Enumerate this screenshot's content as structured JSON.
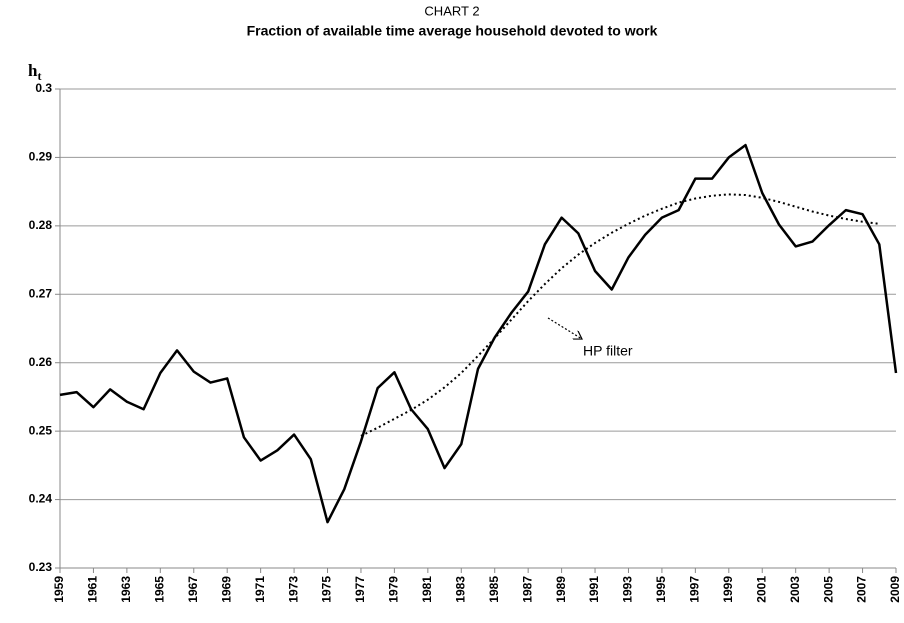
{
  "chart_data": {
    "type": "line",
    "supertitle": "CHART 2",
    "title": "Fraction of available time average household devoted to work",
    "y_label": {
      "base": "h",
      "subscript": "t"
    },
    "x": [
      1959,
      1960,
      1961,
      1962,
      1963,
      1964,
      1965,
      1966,
      1967,
      1968,
      1969,
      1970,
      1971,
      1972,
      1973,
      1974,
      1975,
      1976,
      1977,
      1978,
      1979,
      1980,
      1981,
      1982,
      1983,
      1984,
      1985,
      1986,
      1987,
      1988,
      1989,
      1990,
      1991,
      1992,
      1993,
      1994,
      1995,
      1996,
      1997,
      1998,
      1999,
      2000,
      2001,
      2002,
      2003,
      2004,
      2005,
      2006,
      2007,
      2008,
      2009
    ],
    "series": [
      {
        "color": "#000000",
        "style": "solid",
        "values": [
          0.2553,
          0.2557,
          0.2535,
          0.2561,
          0.2543,
          0.2532,
          0.2585,
          0.2618,
          0.2587,
          0.2571,
          0.2577,
          0.2491,
          0.2457,
          0.2472,
          0.2495,
          0.2459,
          0.2367,
          0.2415,
          0.2485,
          0.2563,
          0.2586,
          0.2532,
          0.2503,
          0.2446,
          0.2481,
          0.2591,
          0.2637,
          0.2673,
          0.2704,
          0.2773,
          0.2812,
          0.2789,
          0.2734,
          0.2707,
          0.2754,
          0.2787,
          0.2812,
          0.2823,
          0.2869,
          0.2869,
          0.29,
          0.2918,
          0.2848,
          0.2802,
          0.277,
          0.2777,
          0.2801,
          0.2823,
          0.2817,
          0.2773,
          0.2585
        ]
      },
      {
        "color": "#000000",
        "style": "dotted",
        "values": [
          null,
          null,
          null,
          null,
          null,
          null,
          null,
          null,
          null,
          null,
          null,
          null,
          null,
          null,
          null,
          null,
          null,
          null,
          0.2493,
          0.2505,
          0.2518,
          0.2531,
          0.2546,
          0.2564,
          0.2585,
          0.261,
          0.2636,
          0.2663,
          0.269,
          0.2715,
          0.2738,
          0.2758,
          0.2775,
          0.279,
          0.2803,
          0.2815,
          0.2825,
          0.2834,
          0.284,
          0.2844,
          0.2846,
          0.2845,
          0.2841,
          0.2835,
          0.2828,
          0.2821,
          0.2815,
          0.281,
          0.2806,
          0.2803,
          null
        ]
      }
    ],
    "annotations": [
      {
        "text": "HP filter"
      }
    ],
    "xlim": [
      1959,
      2009
    ],
    "xticks": [
      1959,
      1961,
      1963,
      1965,
      1967,
      1969,
      1971,
      1973,
      1975,
      1977,
      1979,
      1981,
      1983,
      1985,
      1987,
      1989,
      1991,
      1993,
      1995,
      1997,
      1999,
      2001,
      2003,
      2005,
      2007,
      2009
    ],
    "ylim": [
      0.23,
      0.3
    ],
    "yticks": [
      0.23,
      0.24,
      0.25,
      0.26,
      0.27,
      0.28,
      0.29,
      0.3
    ],
    "grid": true
  }
}
